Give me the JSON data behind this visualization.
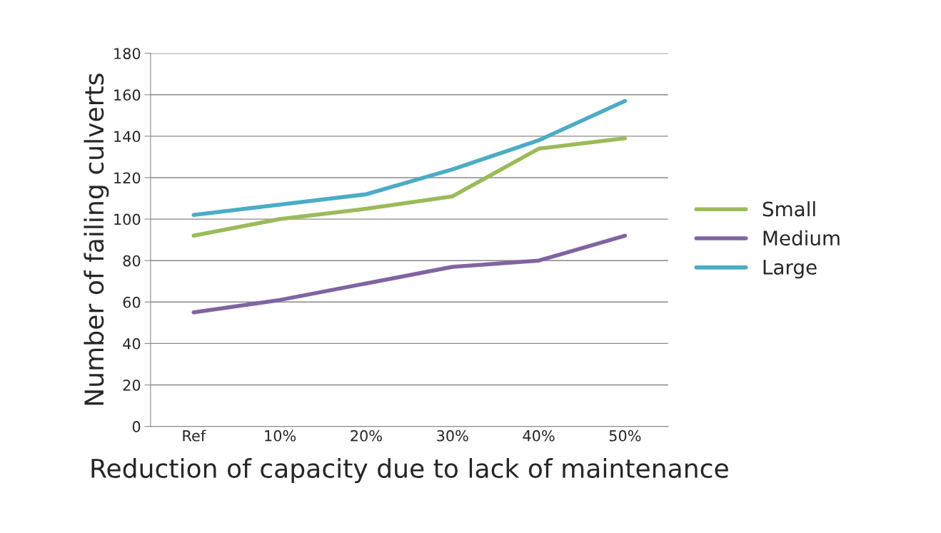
{
  "chart_data": {
    "type": "line",
    "xlabel": "Reduction of capacity due to lack of maintenance",
    "ylabel": "Number of failing culverts",
    "categories": [
      "Ref",
      "10%",
      "20%",
      "30%",
      "40%",
      "50%"
    ],
    "series": [
      {
        "name": "Small",
        "color": "#9bbb59",
        "values": [
          92,
          100,
          105,
          111,
          134,
          139
        ]
      },
      {
        "name": "Medium",
        "color": "#8064a2",
        "values": [
          55,
          61,
          69,
          77,
          80,
          92
        ]
      },
      {
        "name": "Large",
        "color": "#4bacc6",
        "values": [
          102,
          107,
          112,
          124,
          138,
          157
        ]
      }
    ],
    "ylim": [
      0,
      180
    ],
    "yticks": [
      0,
      20,
      40,
      60,
      80,
      100,
      120,
      140,
      160,
      180
    ],
    "grid": "y",
    "legend": "right",
    "marker": "none",
    "line_style": "solid"
  }
}
